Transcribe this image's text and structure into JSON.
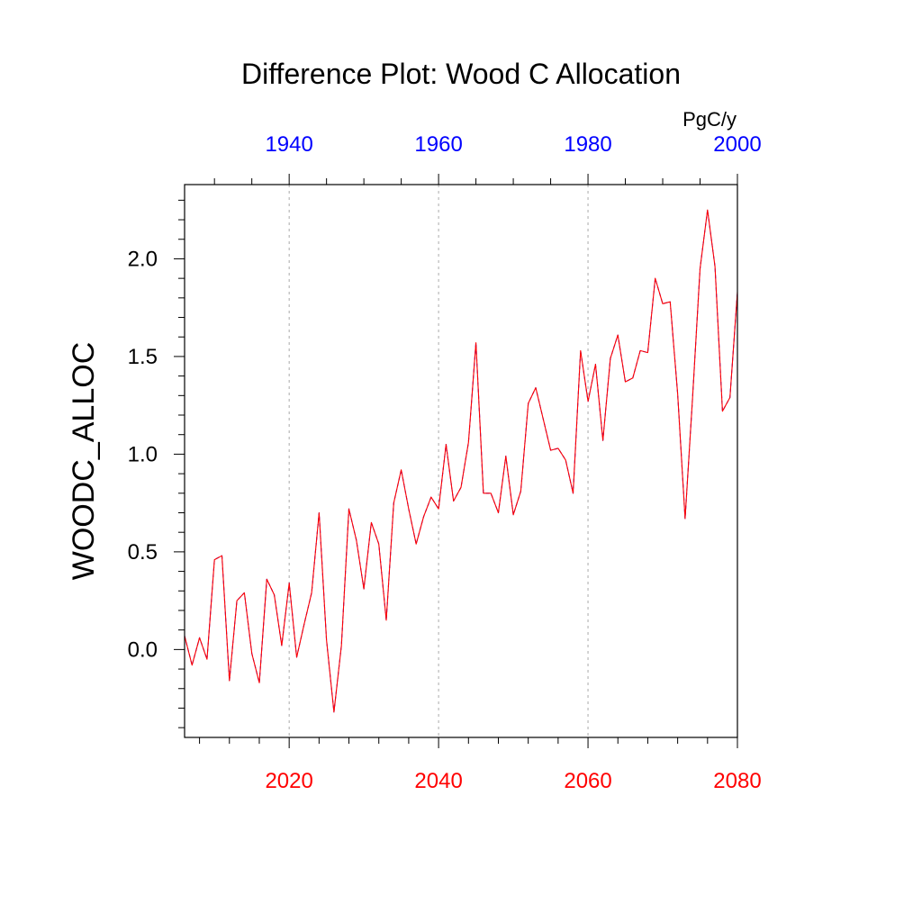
{
  "chart_data": {
    "type": "line",
    "title": "Difference Plot: Wood C Allocation",
    "units": "PgC/y",
    "ylabel": "WOODC_ALLOC",
    "xlabel": "",
    "bottom_axis": {
      "range": [
        2006,
        2080
      ],
      "ticks": [
        2020,
        2040,
        2060,
        2080
      ],
      "tick_labels": [
        "2020",
        "2040",
        "2060",
        "2080"
      ],
      "color": "#ff0000"
    },
    "top_axis": {
      "range": [
        1926,
        2000
      ],
      "ticks": [
        1940,
        1960,
        1980,
        2000
      ],
      "tick_labels": [
        "1940",
        "1960",
        "1980",
        "2000"
      ],
      "color": "#0000ff"
    },
    "ylim": [
      -0.45,
      2.38
    ],
    "y_ticks": [
      0.0,
      0.5,
      1.0,
      1.5,
      2.0
    ],
    "y_tick_labels": [
      "0.0",
      "0.5",
      "1.0",
      "1.5",
      "2.0"
    ],
    "grid": "vertical dashed at bottom-axis major ticks",
    "legend": "none",
    "x": [
      2006,
      2007,
      2008,
      2009,
      2010,
      2011,
      2012,
      2013,
      2014,
      2015,
      2016,
      2017,
      2018,
      2019,
      2020,
      2021,
      2022,
      2023,
      2024,
      2025,
      2026,
      2027,
      2028,
      2029,
      2030,
      2031,
      2032,
      2033,
      2034,
      2035,
      2036,
      2037,
      2038,
      2039,
      2040,
      2041,
      2042,
      2043,
      2044,
      2045,
      2046,
      2047,
      2048,
      2049,
      2050,
      2051,
      2052,
      2053,
      2054,
      2055,
      2056,
      2057,
      2058,
      2059,
      2060,
      2061,
      2062,
      2063,
      2064,
      2065,
      2066,
      2067,
      2068,
      2069,
      2070,
      2071,
      2072,
      2073,
      2074,
      2075,
      2076,
      2077,
      2078,
      2079,
      2080
    ],
    "series": [
      {
        "color": "#0000ff",
        "dash": "dashed",
        "values": [
          0.07,
          -0.08,
          0.06,
          -0.05,
          0.46,
          0.48,
          -0.16,
          0.25,
          0.29,
          -0.02,
          -0.17,
          0.36,
          0.28,
          0.02,
          0.34,
          -0.04,
          0.13,
          0.29,
          0.7,
          0.05,
          -0.32,
          0.02,
          0.72,
          0.56,
          0.31,
          0.65,
          0.54,
          0.15,
          0.75,
          0.92,
          0.72,
          0.54,
          0.68,
          0.78,
          0.72,
          1.05,
          0.76,
          0.83,
          1.06,
          1.57,
          0.8,
          0.8,
          0.7,
          0.99,
          0.69,
          0.81,
          1.26,
          1.34,
          1.18,
          1.02,
          1.03,
          0.97,
          0.8,
          1.53,
          1.27,
          1.46,
          1.07,
          1.49,
          1.61,
          1.37,
          1.39,
          1.53,
          1.52,
          1.9,
          1.77,
          1.78,
          1.31,
          0.67,
          1.29,
          1.95,
          2.25,
          1.96,
          1.22,
          1.29,
          1.83
        ]
      },
      {
        "color": "#ff0000",
        "dash": "solid",
        "values": [
          0.07,
          -0.08,
          0.06,
          -0.05,
          0.46,
          0.48,
          -0.16,
          0.25,
          0.29,
          -0.02,
          -0.17,
          0.36,
          0.28,
          0.02,
          0.34,
          -0.04,
          0.13,
          0.29,
          0.7,
          0.05,
          -0.32,
          0.02,
          0.72,
          0.56,
          0.31,
          0.65,
          0.54,
          0.15,
          0.75,
          0.92,
          0.72,
          0.54,
          0.68,
          0.78,
          0.72,
          1.05,
          0.76,
          0.83,
          1.06,
          1.57,
          0.8,
          0.8,
          0.7,
          0.99,
          0.69,
          0.81,
          1.26,
          1.34,
          1.18,
          1.02,
          1.03,
          0.97,
          0.8,
          1.53,
          1.27,
          1.46,
          1.07,
          1.49,
          1.61,
          1.37,
          1.39,
          1.53,
          1.52,
          1.9,
          1.77,
          1.78,
          1.31,
          0.67,
          1.29,
          1.95,
          2.25,
          1.96,
          1.22,
          1.29,
          1.83
        ]
      }
    ]
  }
}
